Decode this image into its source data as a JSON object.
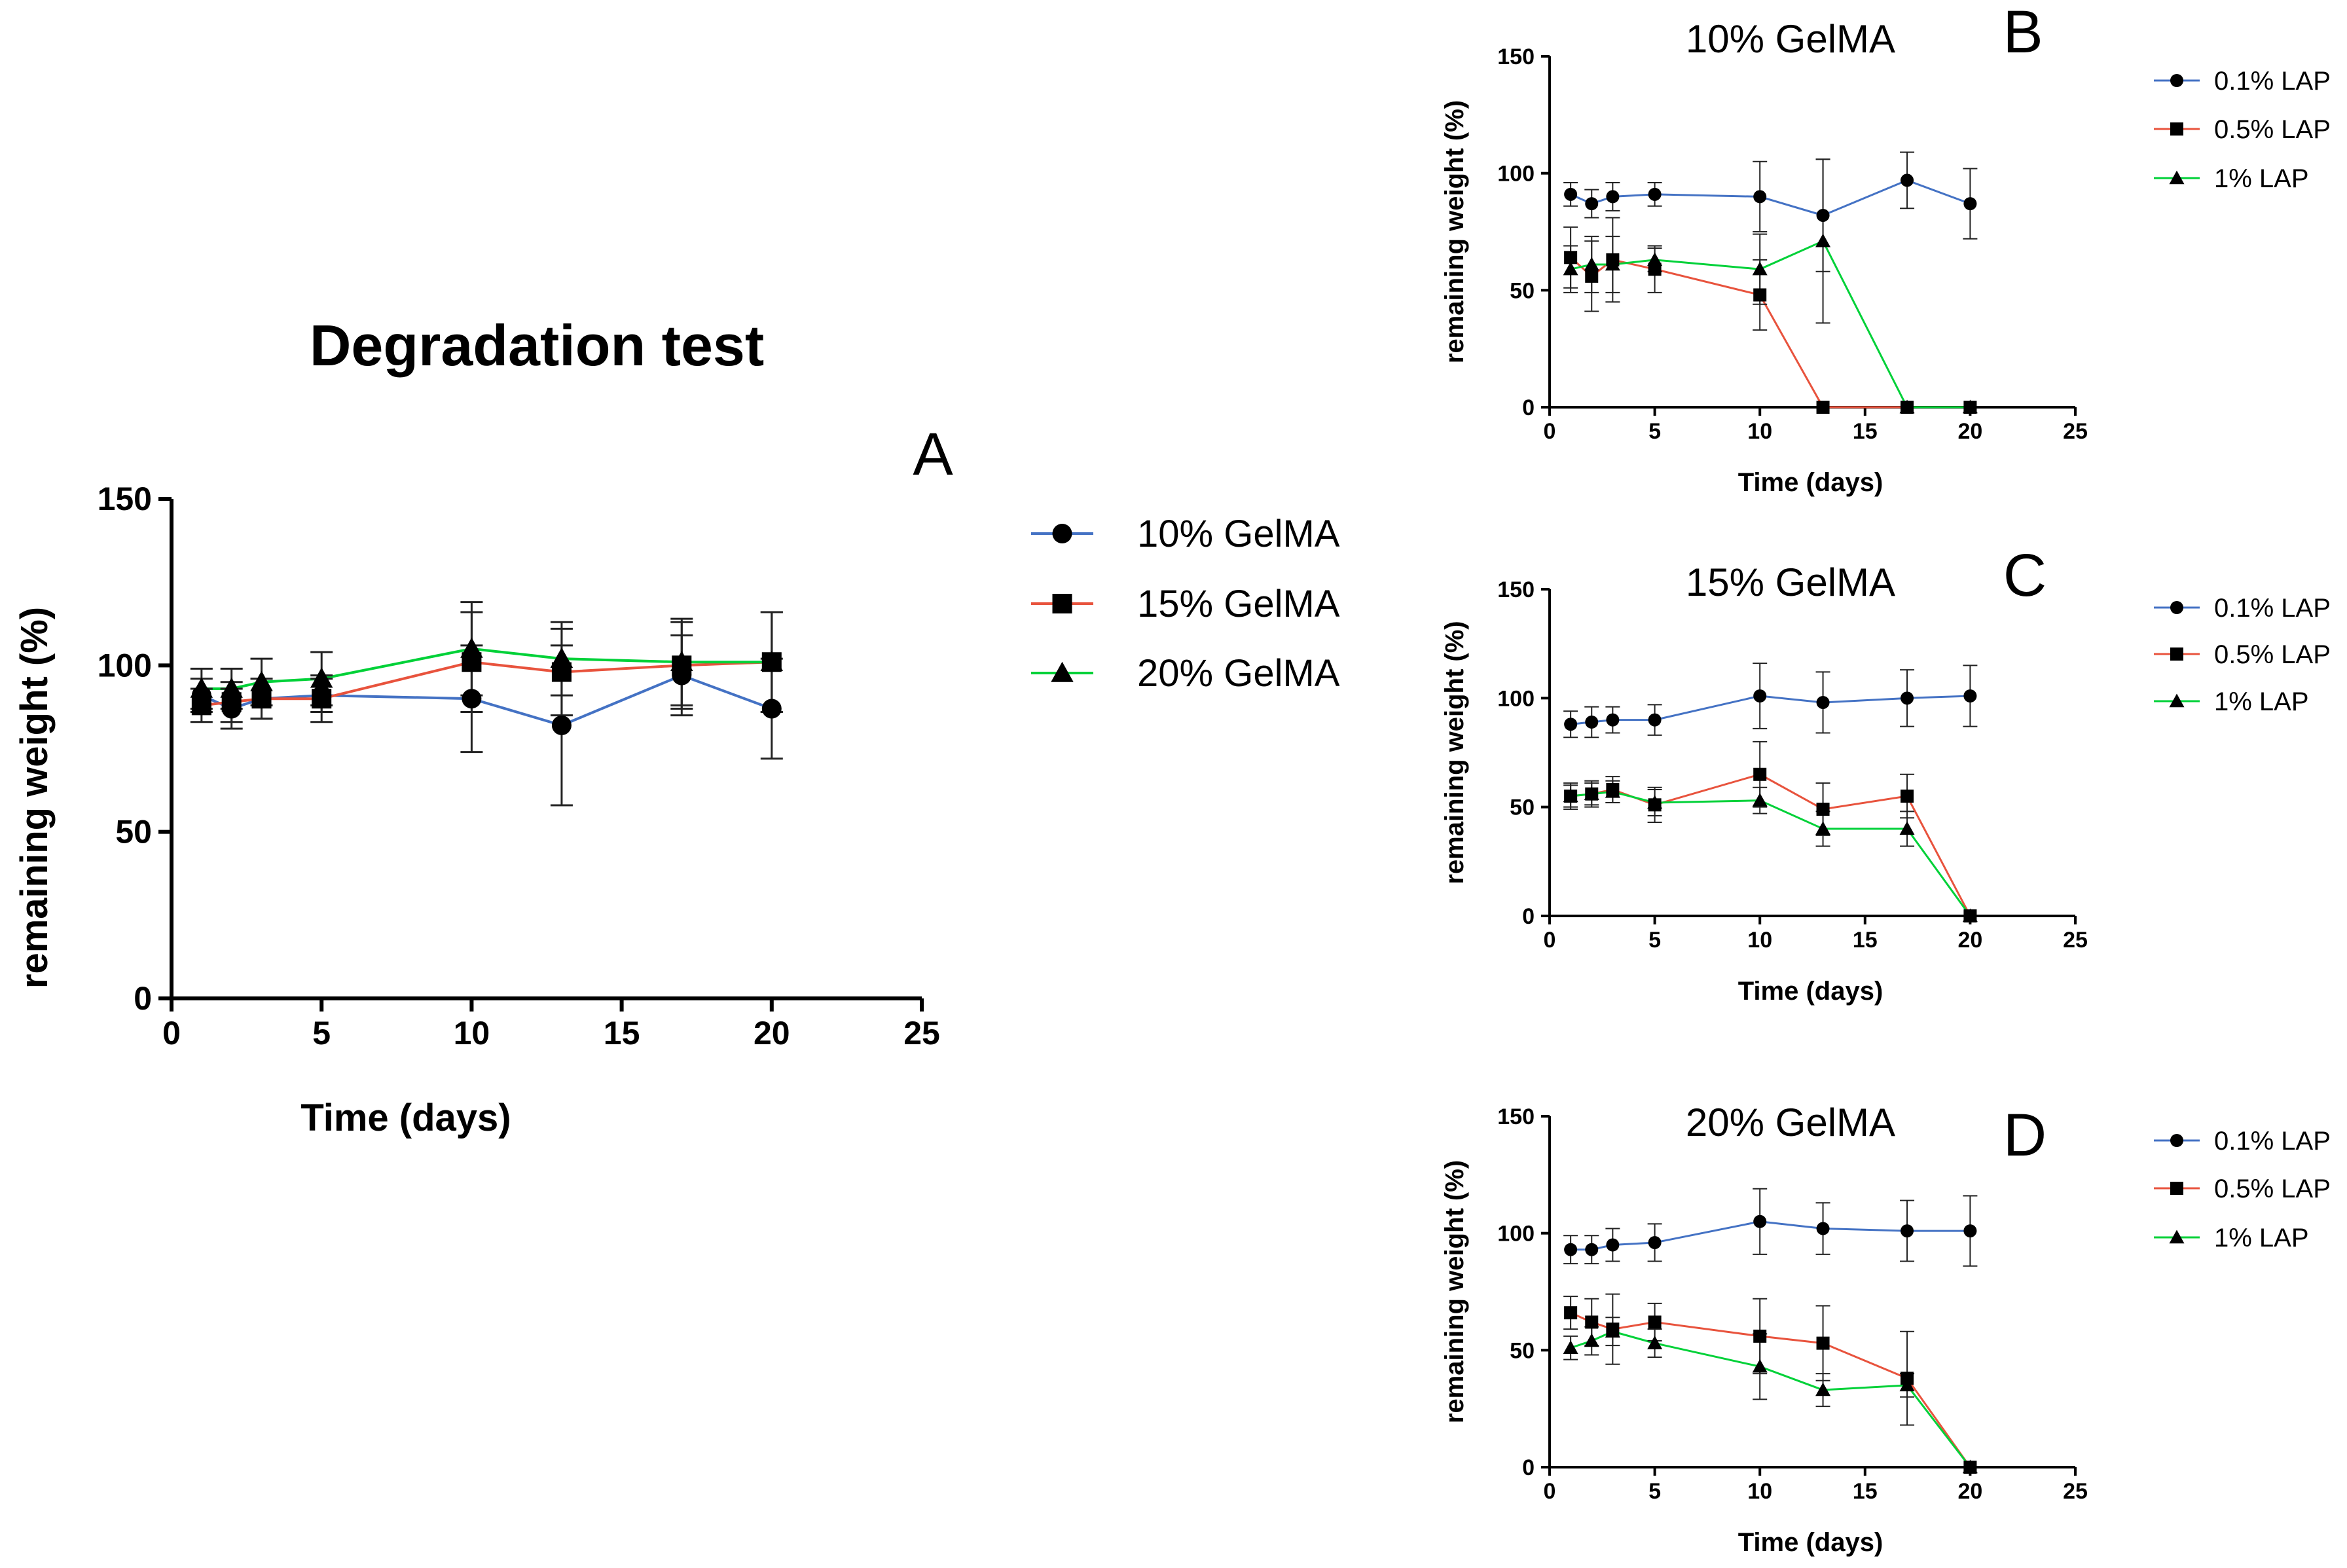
{
  "chart_data": [
    {
      "id": "A",
      "type": "line",
      "panel_label": "A",
      "title": "Degradation test",
      "xlabel": "Time (days)",
      "ylabel": "remaining weight (%)",
      "xlim": [
        0,
        25
      ],
      "ylim": [
        0,
        150
      ],
      "xticks": [
        0,
        5,
        10,
        15,
        20,
        25
      ],
      "yticks": [
        0,
        50,
        100,
        150
      ],
      "legend_position": "right",
      "series": [
        {
          "name": "10% GelMA",
          "color": "#4472C4",
          "marker": "circle",
          "x": [
            1,
            2,
            3,
            5,
            10,
            13,
            17,
            20
          ],
          "y": [
            91,
            87,
            90,
            91,
            90,
            82,
            97,
            87
          ],
          "err": [
            5,
            6,
            6,
            5,
            16,
            24,
            12,
            15
          ]
        },
        {
          "name": "15% GelMA",
          "color": "#E8533D",
          "marker": "square",
          "x": [
            1,
            2,
            3,
            5,
            10,
            13,
            17,
            20
          ],
          "y": [
            88,
            89,
            90,
            90,
            101,
            98,
            100,
            101
          ],
          "err": [
            5,
            6,
            6,
            7,
            15,
            13,
            13,
            15
          ]
        },
        {
          "name": "20% GelMA",
          "color": "#00D138",
          "marker": "triangle",
          "x": [
            1,
            2,
            3,
            5,
            10,
            13,
            17,
            20
          ],
          "y": [
            93,
            93,
            95,
            96,
            105,
            102,
            101,
            101
          ],
          "err": [
            6,
            6,
            7,
            8,
            14,
            11,
            13,
            15
          ]
        }
      ]
    },
    {
      "id": "B",
      "type": "line",
      "panel_label": "B",
      "title": "10% GelMA",
      "xlabel": "Time (days)",
      "ylabel": "remaining weight (%)",
      "xlim": [
        0,
        25
      ],
      "ylim": [
        0,
        150
      ],
      "xticks": [
        0,
        5,
        10,
        15,
        20,
        25
      ],
      "yticks": [
        0,
        50,
        100,
        150
      ],
      "legend_position": "right",
      "series": [
        {
          "name": "0.1% LAP",
          "color": "#4472C4",
          "marker": "circle",
          "x": [
            1,
            2,
            3,
            5,
            10,
            13,
            17,
            20
          ],
          "y": [
            91,
            87,
            90,
            91,
            90,
            82,
            97,
            87
          ],
          "err": [
            5,
            6,
            6,
            5,
            15,
            24,
            12,
            15
          ]
        },
        {
          "name": "0.5% LAP",
          "color": "#E8533D",
          "marker": "square",
          "x": [
            1,
            2,
            3,
            5,
            10,
            13,
            17,
            20
          ],
          "y": [
            64,
            56,
            63,
            59,
            48,
            0,
            0,
            0
          ],
          "err": [
            13,
            15,
            18,
            10,
            15,
            0,
            0,
            0
          ]
        },
        {
          "name": "1% LAP",
          "color": "#00D138",
          "marker": "triangle",
          "x": [
            1,
            2,
            3,
            5,
            10,
            13,
            17,
            20
          ],
          "y": [
            59,
            61,
            61,
            63,
            59,
            71,
            0,
            0
          ],
          "err": [
            10,
            12,
            12,
            5,
            15,
            35,
            0,
            0
          ]
        }
      ]
    },
    {
      "id": "C",
      "type": "line",
      "panel_label": "C",
      "title": "15% GelMA",
      "xlabel": "Time (days)",
      "ylabel": "remaining weight (%)",
      "xlim": [
        0,
        25
      ],
      "ylim": [
        0,
        150
      ],
      "xticks": [
        0,
        5,
        10,
        15,
        20,
        25
      ],
      "yticks": [
        0,
        50,
        100,
        150
      ],
      "legend_position": "right",
      "series": [
        {
          "name": "0.1% LAP",
          "color": "#4472C4",
          "marker": "circle",
          "x": [
            1,
            2,
            3,
            5,
            10,
            13,
            17,
            20
          ],
          "y": [
            88,
            89,
            90,
            90,
            101,
            98,
            100,
            101
          ],
          "err": [
            6,
            7,
            6,
            7,
            15,
            14,
            13,
            14
          ]
        },
        {
          "name": "0.5% LAP",
          "color": "#E8533D",
          "marker": "square",
          "x": [
            1,
            2,
            3,
            5,
            10,
            13,
            17,
            20
          ],
          "y": [
            55,
            56,
            58,
            51,
            65,
            49,
            55,
            0
          ],
          "err": [
            6,
            6,
            6,
            8,
            15,
            12,
            10,
            0
          ]
        },
        {
          "name": "1% LAP",
          "color": "#00D138",
          "marker": "triangle",
          "x": [
            1,
            2,
            3,
            5,
            10,
            13,
            17,
            20
          ],
          "y": [
            55,
            56,
            57,
            52,
            53,
            40,
            40,
            0
          ],
          "err": [
            5,
            5,
            5,
            6,
            6,
            8,
            8,
            0
          ]
        }
      ]
    },
    {
      "id": "D",
      "type": "line",
      "panel_label": "D",
      "title": "20% GelMA",
      "xlabel": "Time (days)",
      "ylabel": "remaining weight (%)",
      "xlim": [
        0,
        25
      ],
      "ylim": [
        0,
        150
      ],
      "xticks": [
        0,
        5,
        10,
        15,
        20,
        25
      ],
      "yticks": [
        0,
        50,
        100,
        150
      ],
      "legend_position": "right",
      "series": [
        {
          "name": "0.1% LAP",
          "color": "#4472C4",
          "marker": "circle",
          "x": [
            1,
            2,
            3,
            5,
            10,
            13,
            17,
            20
          ],
          "y": [
            93,
            93,
            95,
            96,
            105,
            102,
            101,
            101
          ],
          "err": [
            6,
            6,
            7,
            8,
            14,
            11,
            13,
            15
          ]
        },
        {
          "name": "0.5% LAP",
          "color": "#E8533D",
          "marker": "square",
          "x": [
            1,
            2,
            3,
            5,
            10,
            13,
            17,
            20
          ],
          "y": [
            66,
            62,
            59,
            62,
            56,
            53,
            38,
            0
          ],
          "err": [
            7,
            10,
            15,
            8,
            16,
            16,
            20,
            0
          ]
        },
        {
          "name": "1% LAP",
          "color": "#00D138",
          "marker": "triangle",
          "x": [
            1,
            2,
            3,
            5,
            10,
            13,
            17,
            20
          ],
          "y": [
            51,
            54,
            58,
            53,
            43,
            33,
            35,
            0
          ],
          "err": [
            5,
            6,
            6,
            6,
            14,
            7,
            5,
            0
          ]
        }
      ]
    }
  ]
}
